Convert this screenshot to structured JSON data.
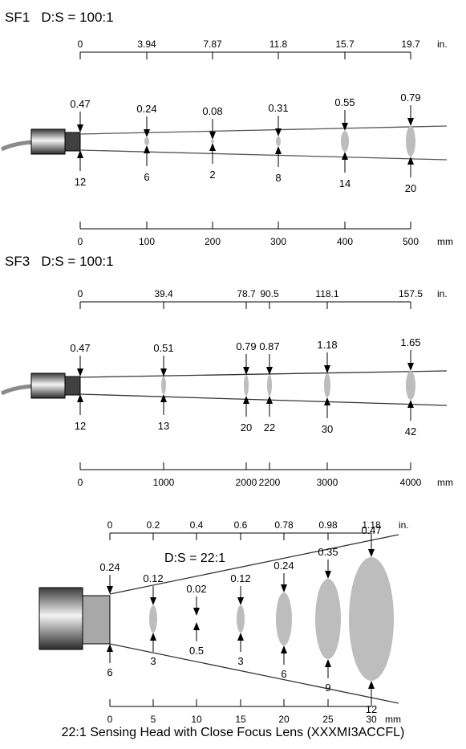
{
  "panels": [
    {
      "id": "sf1",
      "title": "SF1",
      "ratio": "D:S = 100:1",
      "inch_unit": "in.",
      "mm_unit": "mm",
      "inch_ticks": [
        "0",
        "3.94",
        "7.87",
        "11.8",
        "15.7",
        "19.7"
      ],
      "mm_ticks": [
        "0",
        "100",
        "200",
        "300",
        "400",
        "500"
      ],
      "spot_sizes_in": [
        "0.47",
        "0.24",
        "0.08",
        "0.31",
        "0.55",
        "0.79"
      ],
      "spot_sizes_mm": [
        "12",
        "6",
        "2",
        "8",
        "14",
        "20"
      ]
    },
    {
      "id": "sf3",
      "title": "SF3",
      "ratio": "D:S = 100:1",
      "inch_unit": "in.",
      "mm_unit": "mm",
      "inch_ticks": [
        "0",
        "39.4",
        "78.7",
        "90.5",
        "118.1",
        "157.5"
      ],
      "mm_ticks": [
        "0",
        "1000",
        "2000",
        "2200",
        "3000",
        "4000"
      ],
      "spot_sizes_in": [
        "0.47",
        "0.51",
        "0.79",
        "0.87",
        "1.18",
        "1.65"
      ],
      "spot_sizes_mm": [
        "12",
        "13",
        "20",
        "22",
        "30",
        "42"
      ]
    },
    {
      "id": "close-focus",
      "ratio": "D:S = 22:1",
      "inch_unit": "in.",
      "mm_unit": "mm",
      "inch_ticks": [
        "0",
        "0.2",
        "0.4",
        "0.6",
        "0.78",
        "0.98",
        "1.18"
      ],
      "mm_ticks": [
        "0",
        "5",
        "10",
        "15",
        "20",
        "25",
        "30"
      ],
      "spot_sizes_in": [
        "0.24",
        "0.12",
        "0.02",
        "0.12",
        "0.24",
        "0.35",
        "0.47"
      ],
      "spot_sizes_mm": [
        "6",
        "3",
        "0.5",
        "3",
        "6",
        "9",
        "12"
      ]
    }
  ],
  "caption": "22:1 Sensing Head with Close Focus Lens (XXXMI3ACCFL)",
  "colors": {
    "spot": "#bdbdbd",
    "line": "#000000",
    "sensor_dark": "#404040",
    "sensor_light": "#f2f2f2",
    "lens_gray": "#a8a8a8"
  }
}
